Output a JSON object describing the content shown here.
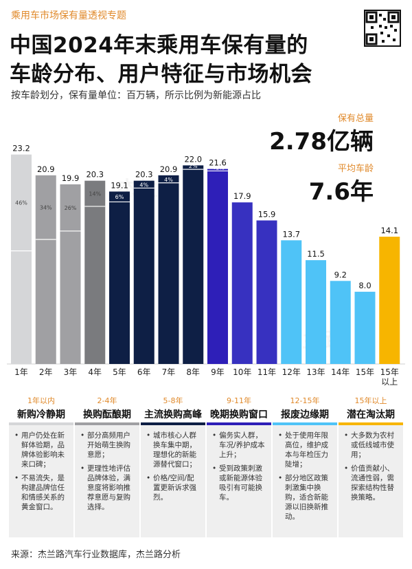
{
  "header": {
    "topline": "乘用车市场保有量透视专题",
    "title_line1": "中国2024年末乘用车保有量的",
    "title_line2": "车龄分布、用户特征与市场机会",
    "subtitle": "按车龄划分，保有量单位：百万辆，所示比例为新能源占比"
  },
  "kpis": {
    "total_label": "保有总量",
    "total_value": "2.78亿辆",
    "avg_label": "平均车龄",
    "avg_value": "7.6年"
  },
  "watermark": "杰兰路",
  "colors": {
    "gray_light": "#D5D6D8",
    "gray_mid": "#A0A0A3",
    "gray_dark": "#7A7B7E",
    "navy": "#0E1F45",
    "purple": "#2E1FB8",
    "indigo": "#3731C0",
    "sky": "#4FC3F7",
    "gold": "#F7B500",
    "accent": "#E0892A"
  },
  "chart_data": {
    "type": "bar",
    "categories": [
      "1年",
      "2年",
      "3年",
      "4年",
      "5年",
      "6年",
      "7年",
      "8年",
      "9年",
      "10年",
      "11年",
      "12年",
      "13年",
      "14年",
      "15年",
      "15年以上"
    ],
    "values": [
      23.2,
      20.9,
      19.9,
      20.3,
      19.1,
      20.3,
      20.9,
      22.0,
      21.6,
      17.9,
      15.9,
      13.7,
      11.5,
      9.2,
      8.0,
      14.1
    ],
    "value_labels": [
      "23.2",
      "20.9",
      "19.9",
      "20.3",
      "19.1",
      "20.3",
      "20.9",
      "22.0",
      "21.6",
      "17.9",
      "15.9",
      "13.7",
      "11.5",
      "9.2",
      "8.0",
      "14.1"
    ],
    "nev_share": [
      46,
      34,
      26,
      14,
      6,
      4,
      4,
      2,
      1,
      null,
      null,
      null,
      null,
      null,
      null,
      null
    ],
    "nev_share_labels": [
      "46%",
      "34%",
      "26%",
      "14%",
      "6%",
      "4%",
      "4%",
      "2%",
      "<1%",
      "",
      "",
      "",
      "",
      "",
      "",
      ""
    ],
    "bar_colors": [
      "#D5D6D8",
      "#A0A0A3",
      "#A0A0A3",
      "#7A7B7E",
      "#0E1F45",
      "#0E1F45",
      "#0E1F45",
      "#0E1F45",
      "#2E1FB8",
      "#3731C0",
      "#3731C0",
      "#4FC3F7",
      "#4FC3F7",
      "#4FC3F7",
      "#4FC3F7",
      "#F7B500"
    ],
    "ylim": [
      0,
      25
    ],
    "grid": false,
    "legend": "none",
    "xlabel": "",
    "ylabel": ""
  },
  "phases": [
    {
      "range": "1年以内",
      "name": "新购冷静期",
      "color": "#D5D6D8",
      "bullets": [
        "用户仍处在新鲜体验期，品牌体验影响未来口碑；",
        "不易流失，是构建品牌信任和情感关系的黄金窗口。"
      ]
    },
    {
      "range": "2-4年",
      "name": "换购酝酿期",
      "color": "#A0A0A3",
      "bullets": [
        "部分高频用户开始萌生换购意愿；",
        "更理性地评估品牌体验，满意度将影响推荐意愿与复购选择。"
      ]
    },
    {
      "range": "5-8年",
      "name": "主流换购高峰",
      "color": "#0E1F45",
      "bullets": [
        "城市核心人群换车集中期，理想化的新能源替代窗口；",
        "价格/空间/配置更新诉求强烈。"
      ]
    },
    {
      "range": "9-11年",
      "name": "晚期换购窗口",
      "color": "#2E1FB8",
      "bullets": [
        "偏务实人群，车况/养护成本上升；",
        "受到政策刺激或新能源体验吸引有可能换车。"
      ]
    },
    {
      "range": "12-15年",
      "name": "报废边缘期",
      "color": "#4FC3F7",
      "bullets": [
        "处于使用年限高位，维护成本与年检压力陡增；",
        "部分地区政策刺激集中换购，适合新能源以旧换新推动。"
      ]
    },
    {
      "range": "15年以上",
      "name": "潜在淘汰期",
      "color": "#F7B500",
      "bullets": [
        "大多数为农村或低线城市使用；",
        "价值贡献小、流通性弱，需探索结构性替换策略。"
      ]
    }
  ],
  "footer": {
    "source": "来源：杰兰路汽车行业数据库，杰兰路分析"
  }
}
